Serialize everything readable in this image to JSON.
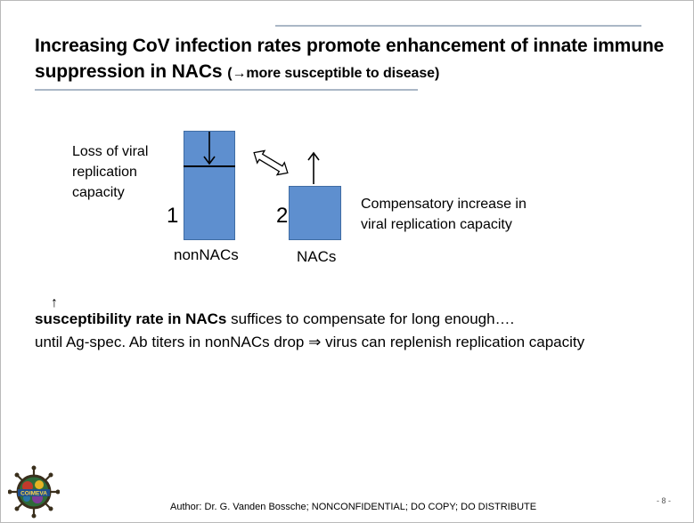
{
  "title": {
    "main": "Increasing CoV infection rates promote enhancement of  innate immune suppression in NACs ",
    "suffix": "(→more susceptible to disease)"
  },
  "diagram": {
    "left_note": [
      "Loss of viral",
      "replication",
      "capacity"
    ],
    "right_note": [
      "Compensatory increase in",
      "viral replication capacity"
    ],
    "bar1_number": "1",
    "bar2_number": "2",
    "bar1_label": "nonNACs",
    "bar2_label": "NACs",
    "bar_color": "#5e8fcf"
  },
  "body": {
    "arrow_glyph": "↑",
    "line1_bold": "susceptibility rate in NACs",
    "line1_rest": " suffices to compensate for long enough….",
    "line2": "until Ag-spec. Ab titers in nonNACs drop ⇒ virus can replenish replication capacity"
  },
  "footer": {
    "author": "Author: Dr. G. Vanden Bossche; NONCONFIDENTIAL; DO COPY; DO DISTRIBUTE",
    "page": "- 8 -",
    "logo_text": "COIMEVA"
  }
}
